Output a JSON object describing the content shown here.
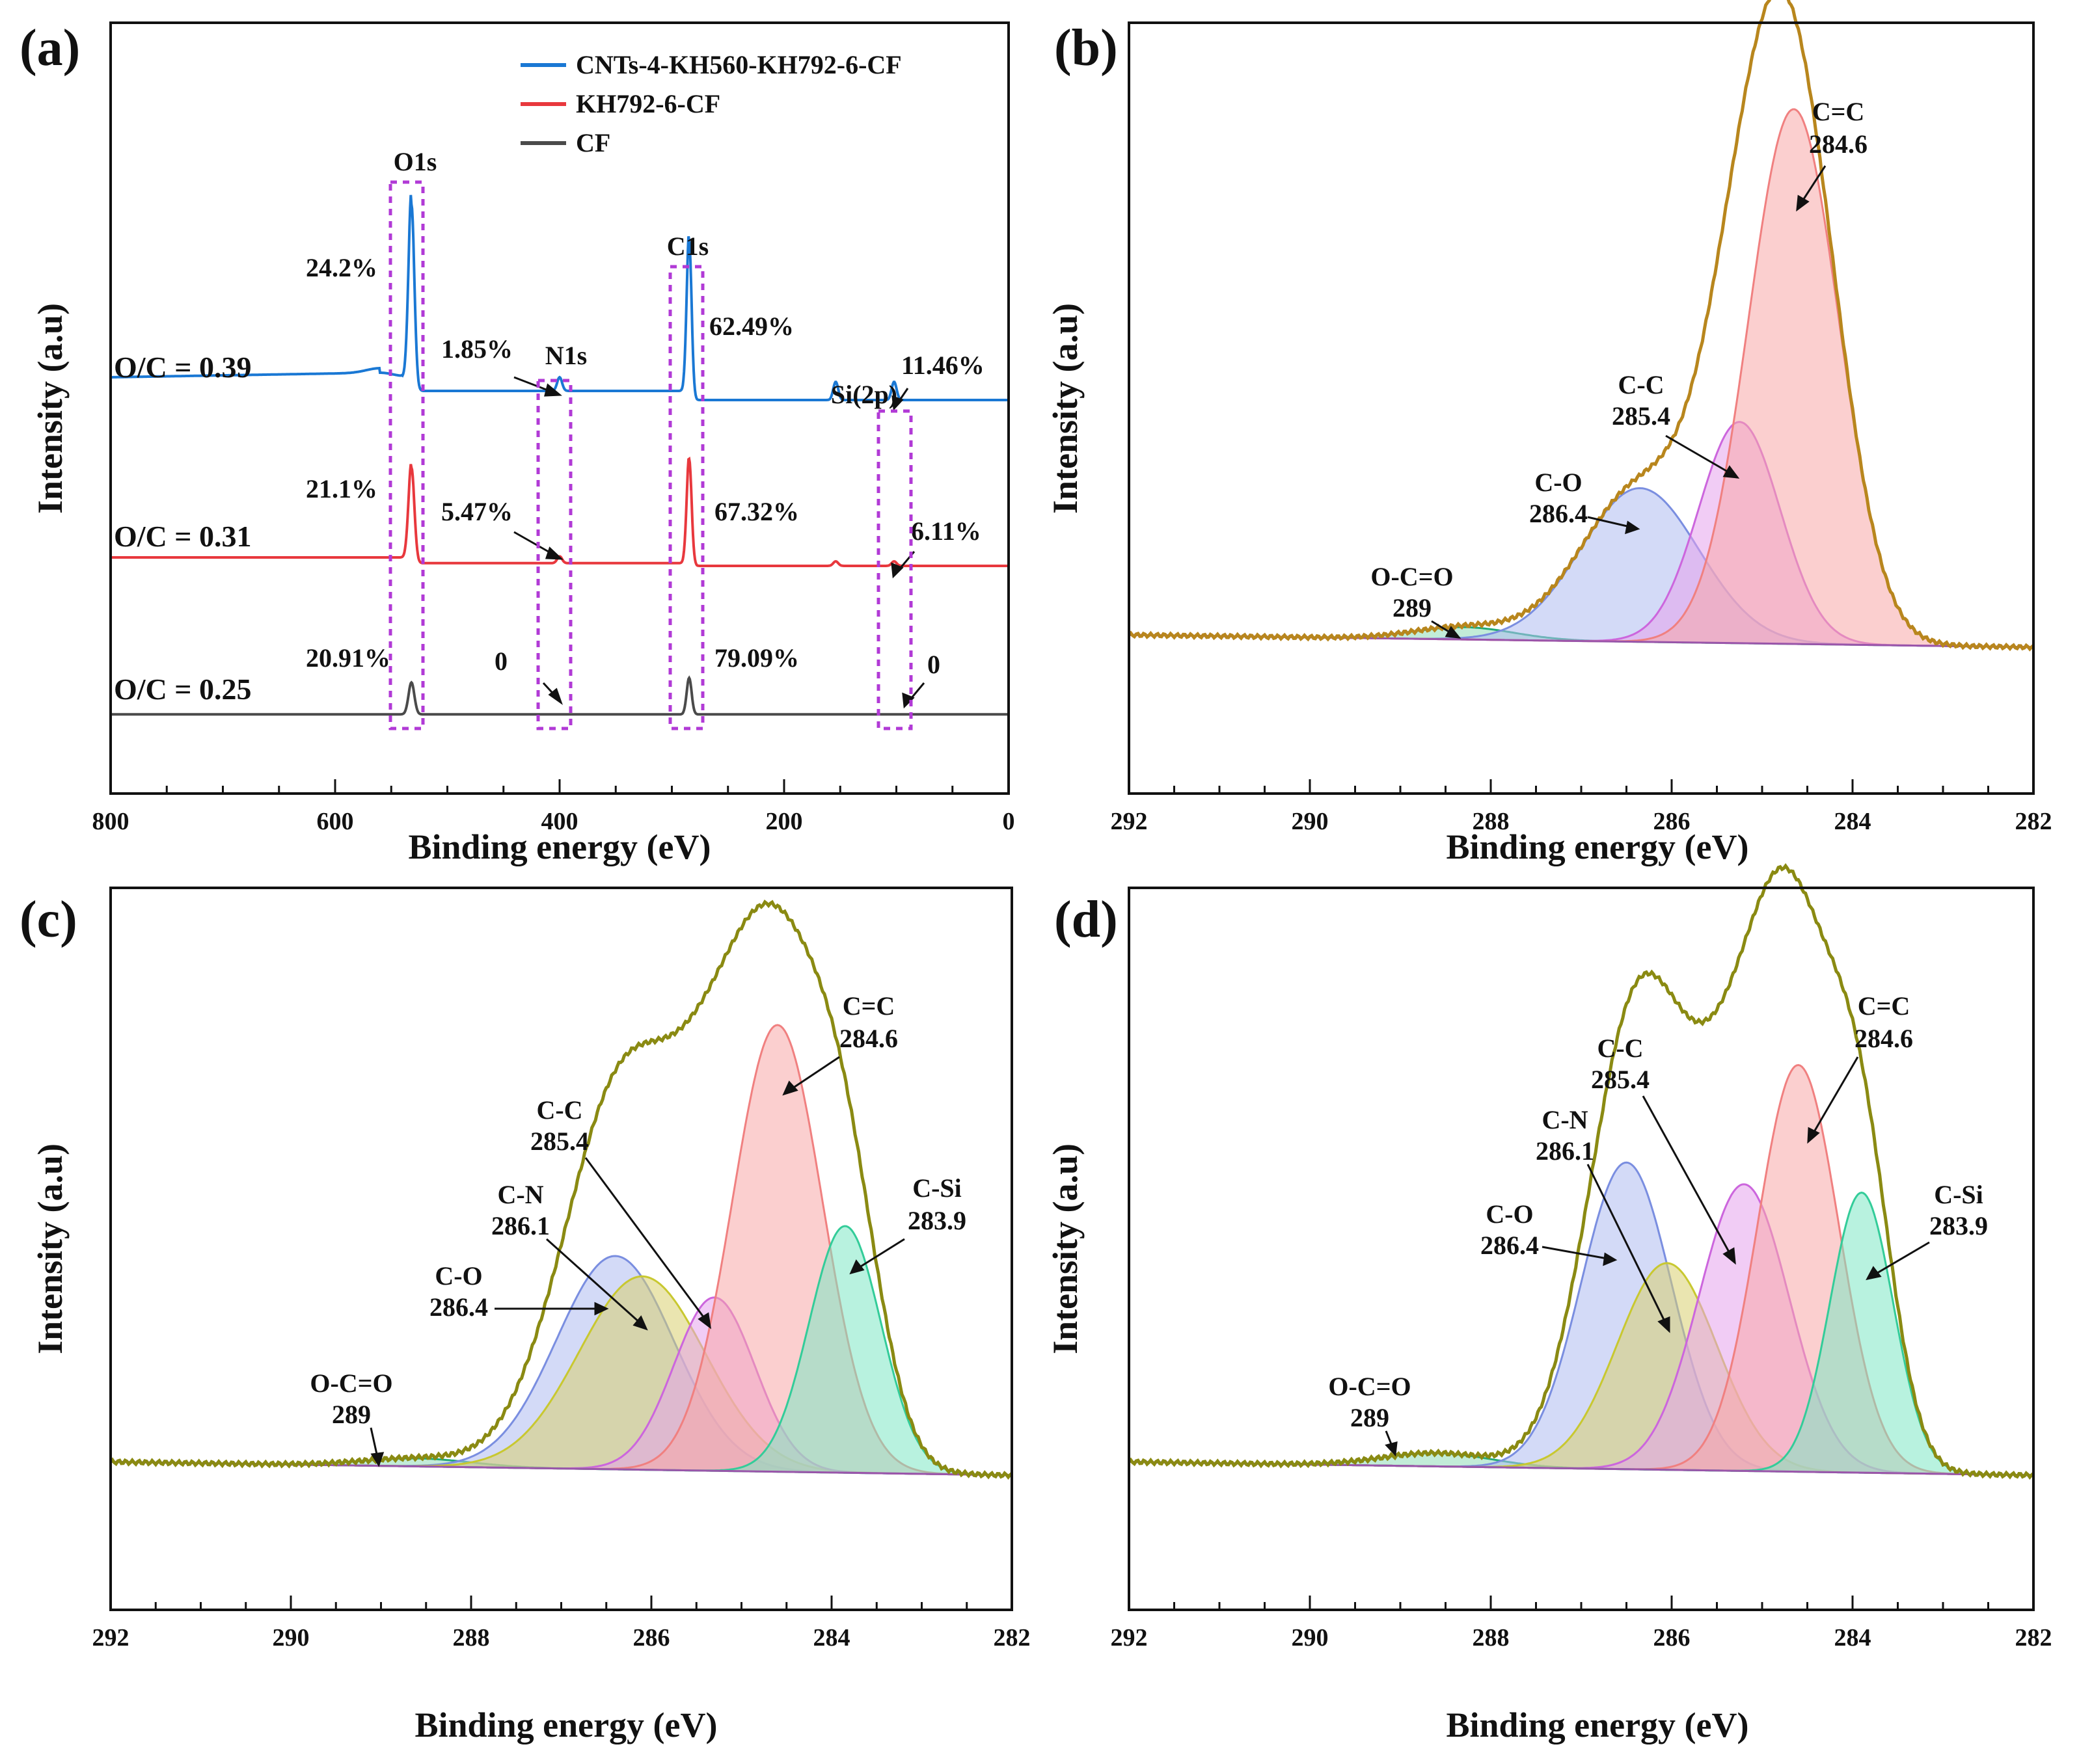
{
  "colors": {
    "blue": "#1a78d4",
    "red": "#e8383d",
    "dark": "#4a4a4a",
    "envelope_b": "#b8861d",
    "envelope_cd": "#8a8a12",
    "box": "#b13ad6",
    "blue_text": "#1414e6",
    "red_text": "#e81414",
    "legend_blue_text": "#1a78d4",
    "legend_red_text": "#e81414"
  },
  "chart_data": [
    {
      "panel": "(a)",
      "type": "line",
      "xlabel": "Binding energy (eV)",
      "ylabel": "Intensity (a.u)",
      "xlim": [
        800,
        0
      ],
      "xticks": [
        "800",
        "600",
        "400",
        "200",
        "0"
      ],
      "xtick_values": [
        800,
        600,
        400,
        200,
        0
      ],
      "legend": [
        {
          "name": "CNTs-4-KH560-KH792-6-CF",
          "color": "#1a78d4"
        },
        {
          "name": "KH792-6-CF",
          "color": "#e8383d"
        },
        {
          "name": "CF",
          "color": "#4a4a4a"
        }
      ],
      "peak_labels": [
        {
          "name": "O1s",
          "x": 532
        },
        {
          "name": "N1s",
          "x": 400
        },
        {
          "name": "C1s",
          "x": 284.6
        },
        {
          "name": "Si(2p)",
          "x": 102
        }
      ],
      "series": [
        {
          "name": "CNTs-4-KH560-KH792-6-CF",
          "ratio": "O/C = 0.39",
          "color": "#1a78d4",
          "baseline": 0.72,
          "percent": {
            "O1s": "24.2%",
            "N1s": "1.85%",
            "C1s": "62.49%",
            "Si2p": "11.46%"
          },
          "peaks": [
            [
              532,
              0.82
            ],
            [
              400,
              0.06
            ],
            [
              284.6,
              0.7
            ],
            [
              154,
              0.08
            ],
            [
              102,
              0.08
            ]
          ]
        },
        {
          "name": "KH792-6-CF",
          "ratio": "O/C = 0.31",
          "color": "#e8383d",
          "baseline": 0.28,
          "percent": {
            "O1s": "21.1%",
            "N1s": "5.47%",
            "C1s": "67.32%",
            "Si2p": "6.11%"
          },
          "peaks": [
            [
              532,
              0.42
            ],
            [
              400,
              0.03
            ],
            [
              284.6,
              0.47
            ],
            [
              154,
              0.02
            ],
            [
              102,
              0.02
            ]
          ]
        },
        {
          "name": "CF",
          "ratio": "O/C = 0.25",
          "color": "#4a4a4a",
          "baseline": 0.0,
          "percent": {
            "O1s": "20.91%",
            "N1s": "0",
            "C1s": "79.09%",
            "Si2p": "0"
          },
          "peaks": [
            [
              532,
              0.14
            ],
            [
              284.6,
              0.16
            ]
          ]
        }
      ]
    },
    {
      "panel": "(b)",
      "type": "area",
      "xlabel": "Binding energy (eV)",
      "ylabel": "Intensity (a.u)",
      "xlim": [
        292,
        282
      ],
      "xticks": [
        "292",
        "290",
        "288",
        "286",
        "284",
        "282"
      ],
      "xtick_values": [
        292,
        290,
        288,
        286,
        284,
        282
      ],
      "peaks": [
        {
          "name": "O-C=O",
          "position": 289,
          "center": 288.3,
          "height": 0.02,
          "sigma": 0.55,
          "color": "#22aa77",
          "fill": "#8fdcb8",
          "label": {
            "name": "O-C=O",
            "value": "289"
          }
        },
        {
          "name": "C-O",
          "position": 286.4,
          "center": 286.35,
          "height": 0.25,
          "sigma": 0.65,
          "color": "#7a8ee0",
          "fill": "#aebcf0",
          "label": {
            "name": "C-O",
            "value": "286.4"
          }
        },
        {
          "name": "C-C",
          "position": 285.4,
          "center": 285.25,
          "height": 0.36,
          "sigma": 0.45,
          "color": "#cc66dd",
          "fill": "#e6a2ec",
          "label": {
            "name": "C-C",
            "value": "285.4"
          }
        },
        {
          "name": "C=C",
          "position": 284.6,
          "center": 284.65,
          "height": 0.87,
          "sigma": 0.5,
          "color": "#f08080",
          "fill": "#f8a8a8",
          "label": {
            "name": "C=C",
            "value": "284.6"
          }
        }
      ]
    },
    {
      "panel": "(c)",
      "type": "area",
      "xlabel": "Binding energy (eV)",
      "ylabel": "Intensity (a.u)",
      "xlim": [
        292,
        282
      ],
      "xticks": [
        "292",
        "290",
        "288",
        "286",
        "284",
        "282"
      ],
      "xtick_values": [
        292,
        290,
        288,
        286,
        284,
        282
      ],
      "peaks": [
        {
          "name": "O-C=O",
          "position": 289,
          "center": 288.6,
          "height": 0.012,
          "sigma": 0.6,
          "color": "#22aa77",
          "fill": "#8fdcb8",
          "label": {
            "name": "O-C=O",
            "value": "289"
          }
        },
        {
          "name": "C-O",
          "position": 286.4,
          "center": 286.4,
          "height": 0.32,
          "sigma": 0.65,
          "color": "#7a8ee0",
          "fill": "#aebcf0",
          "label": {
            "name": "C-O",
            "value": "286.4"
          }
        },
        {
          "name": "C-N",
          "position": 286.1,
          "center": 286.1,
          "height": 0.29,
          "sigma": 0.7,
          "color": "#c8c830",
          "fill": "#d8d070",
          "label": {
            "name": "C-N",
            "value": "286.1"
          }
        },
        {
          "name": "C-C",
          "position": 285.4,
          "center": 285.3,
          "height": 0.26,
          "sigma": 0.45,
          "color": "#cc66dd",
          "fill": "#e6a2ec",
          "label": {
            "name": "C-C",
            "value": "285.4"
          }
        },
        {
          "name": "C=C",
          "position": 284.6,
          "center": 284.6,
          "height": 0.67,
          "sigma": 0.5,
          "color": "#f08080",
          "fill": "#f8a8a8",
          "label": {
            "name": "C=C",
            "value": "284.6"
          }
        },
        {
          "name": "C-Si",
          "position": 283.9,
          "center": 283.85,
          "height": 0.37,
          "sigma": 0.4,
          "color": "#33cc99",
          "fill": "#7ee8c4",
          "label": {
            "name": "C-Si",
            "value": "283.9"
          }
        }
      ]
    },
    {
      "panel": "(d)",
      "type": "area",
      "xlabel": "Binding energy (eV)",
      "ylabel": "Intensity (a.u)",
      "xlim": [
        292,
        282
      ],
      "xticks": [
        "292",
        "290",
        "288",
        "286",
        "284",
        "282"
      ],
      "xtick_values": [
        292,
        290,
        288,
        286,
        284,
        282
      ],
      "peaks": [
        {
          "name": "O-C=O",
          "position": 289,
          "center": 288.6,
          "height": 0.02,
          "sigma": 0.6,
          "color": "#22aa77",
          "fill": "#8fdcb8",
          "label": {
            "name": "O-C=O",
            "value": "289"
          }
        },
        {
          "name": "C-O",
          "position": 286.4,
          "center": 286.5,
          "height": 0.46,
          "sigma": 0.5,
          "color": "#7a8ee0",
          "fill": "#aebcf0",
          "label": {
            "name": "C-O",
            "value": "286.4"
          }
        },
        {
          "name": "C-N",
          "position": 286.1,
          "center": 286.05,
          "height": 0.31,
          "sigma": 0.55,
          "color": "#c8c830",
          "fill": "#d8d070",
          "label": {
            "name": "C-N",
            "value": "286.1"
          }
        },
        {
          "name": "C-C",
          "position": 285.4,
          "center": 285.2,
          "height": 0.43,
          "sigma": 0.5,
          "color": "#cc66dd",
          "fill": "#e6a2ec",
          "label": {
            "name": "C-C",
            "value": "285.4"
          }
        },
        {
          "name": "C=C",
          "position": 284.6,
          "center": 284.6,
          "height": 0.61,
          "sigma": 0.45,
          "color": "#f08080",
          "fill": "#f8a8a8",
          "label": {
            "name": "C=C",
            "value": "284.6"
          }
        },
        {
          "name": "C-Si",
          "position": 283.9,
          "center": 283.9,
          "height": 0.42,
          "sigma": 0.35,
          "color": "#33cc99",
          "fill": "#7ee8c4",
          "label": {
            "name": "C-Si",
            "value": "283.9"
          }
        }
      ]
    }
  ]
}
